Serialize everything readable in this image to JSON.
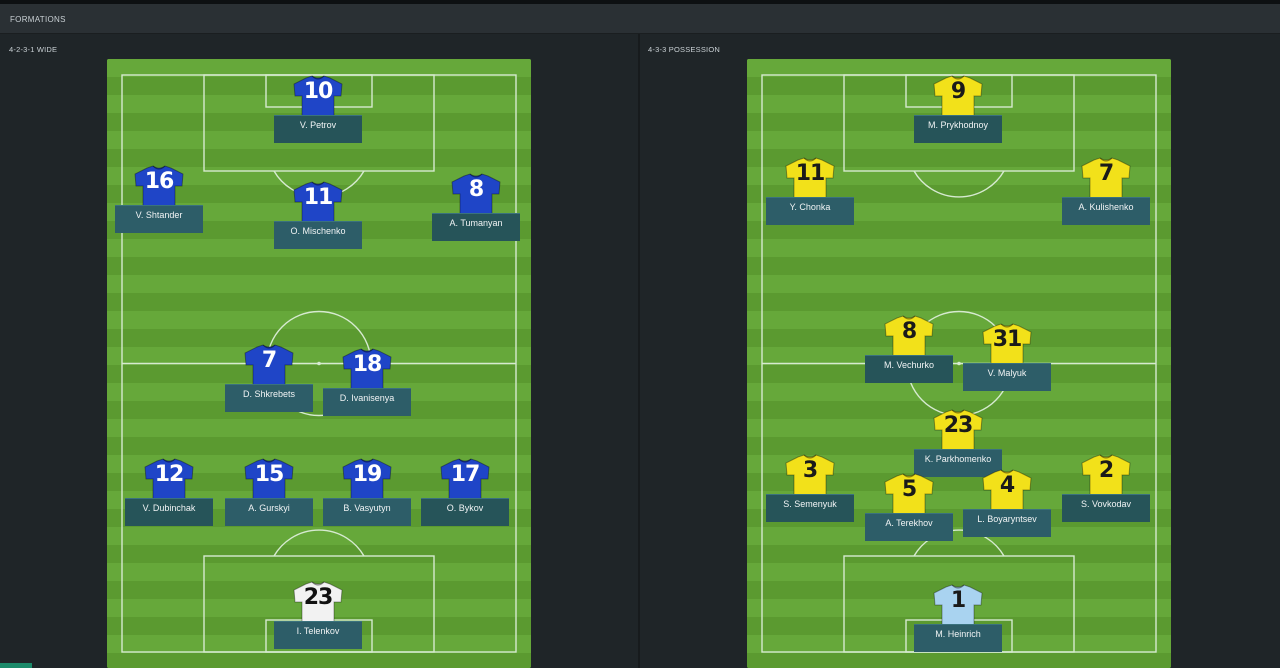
{
  "header": {
    "title": "FORMATIONS"
  },
  "colors": {
    "home_shirt": "#1f45c7",
    "home_number": "#ffffff",
    "home_gk_shirt": "#f2f2f2",
    "home_gk_number": "#111111",
    "away_shirt": "#f2e11a",
    "away_number": "#1a1a1a",
    "away_gk_shirt": "#a9d3f0",
    "away_gk_number": "#1a1a1a",
    "pitch": "#5ea131"
  },
  "formations": [
    {
      "label": "4-2-3-1 WIDE",
      "players": [
        {
          "number": "10",
          "name": "V. Petrov"
        },
        {
          "number": "16",
          "name": "V. Shtander"
        },
        {
          "number": "11",
          "name": "O. Mischenko"
        },
        {
          "number": "8",
          "name": "A. Tumanyan"
        },
        {
          "number": "7",
          "name": "D. Shkrebets"
        },
        {
          "number": "18",
          "name": "D. Ivanisenya"
        },
        {
          "number": "12",
          "name": "V. Dubinchak"
        },
        {
          "number": "15",
          "name": "A. Gurskyi"
        },
        {
          "number": "19",
          "name": "B. Vasyutyn"
        },
        {
          "number": "17",
          "name": "O. Bykov"
        },
        {
          "number": "23",
          "name": "I. Telenkov"
        }
      ]
    },
    {
      "label": "4-3-3 POSSESSION",
      "players": [
        {
          "number": "9",
          "name": "M. Prykhodnoy"
        },
        {
          "number": "11",
          "name": "Y. Chonka"
        },
        {
          "number": "7",
          "name": "A. Kulishenko"
        },
        {
          "number": "8",
          "name": "M. Vechurko"
        },
        {
          "number": "31",
          "name": "V. Malyuk"
        },
        {
          "number": "23",
          "name": "K. Parkhomenko"
        },
        {
          "number": "3",
          "name": "S. Semenyuk"
        },
        {
          "number": "5",
          "name": "A. Terekhov"
        },
        {
          "number": "4",
          "name": "L. Boyaryntsev"
        },
        {
          "number": "2",
          "name": "S. Vovkodav"
        },
        {
          "number": "1",
          "name": "M. Heinrich"
        }
      ]
    }
  ]
}
